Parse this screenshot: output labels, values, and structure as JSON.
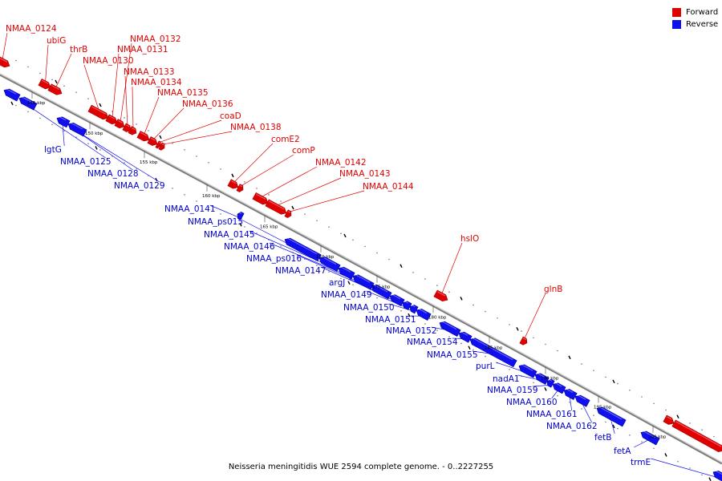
{
  "legend": {
    "forward": {
      "label": "Forward",
      "color": "#e00000"
    },
    "reverse": {
      "label": "Reverse",
      "color": "#1010ee"
    }
  },
  "caption": "Neisseria meningitidis WUE 2594 complete genome. - 0..2227255",
  "colors": {
    "axis": "#888888",
    "forward": "#e00000",
    "reverse": "#1010ee",
    "dots": "#777777"
  },
  "scale_ticks": [
    "145 kbp",
    "150 kbp",
    "155 kbp",
    "160 kbp",
    "165 kbp",
    "170 kbp",
    "175 kbp",
    "180 kbp",
    "185 kbp",
    "190 kbp",
    "195 kbp",
    "200 kbp"
  ],
  "forward_labels": [
    "NMAA_0124",
    "ubiG",
    "thrB",
    "NMAA_0130",
    "NMAA_0131",
    "NMAA_0132",
    "NMAA_0133",
    "NMAA_0134",
    "NMAA_0135",
    "NMAA_0136",
    "coaD",
    "NMAA_0138",
    "comE2",
    "comP",
    "NMAA_0142",
    "NMAA_0143",
    "NMAA_0144",
    "hslO",
    "glnB"
  ],
  "reverse_labels": [
    "lgtG",
    "NMAA_0125",
    "NMAA_0128",
    "NMAA_0129",
    "NMAA_0141",
    "NMAA_ps015",
    "NMAA_0145",
    "NMAA_0146",
    "NMAA_ps016",
    "NMAA_0147",
    "argJ",
    "NMAA_0149",
    "NMAA_0150",
    "NMAA_0151",
    "NMAA_0152",
    "NMAA_0154",
    "NMAA_0155",
    "purL",
    "nadA1",
    "NMAA_0159",
    "NMAA_0160",
    "NMAA_0161",
    "NMAA_0162",
    "fetB",
    "fetA",
    "trmE"
  ]
}
